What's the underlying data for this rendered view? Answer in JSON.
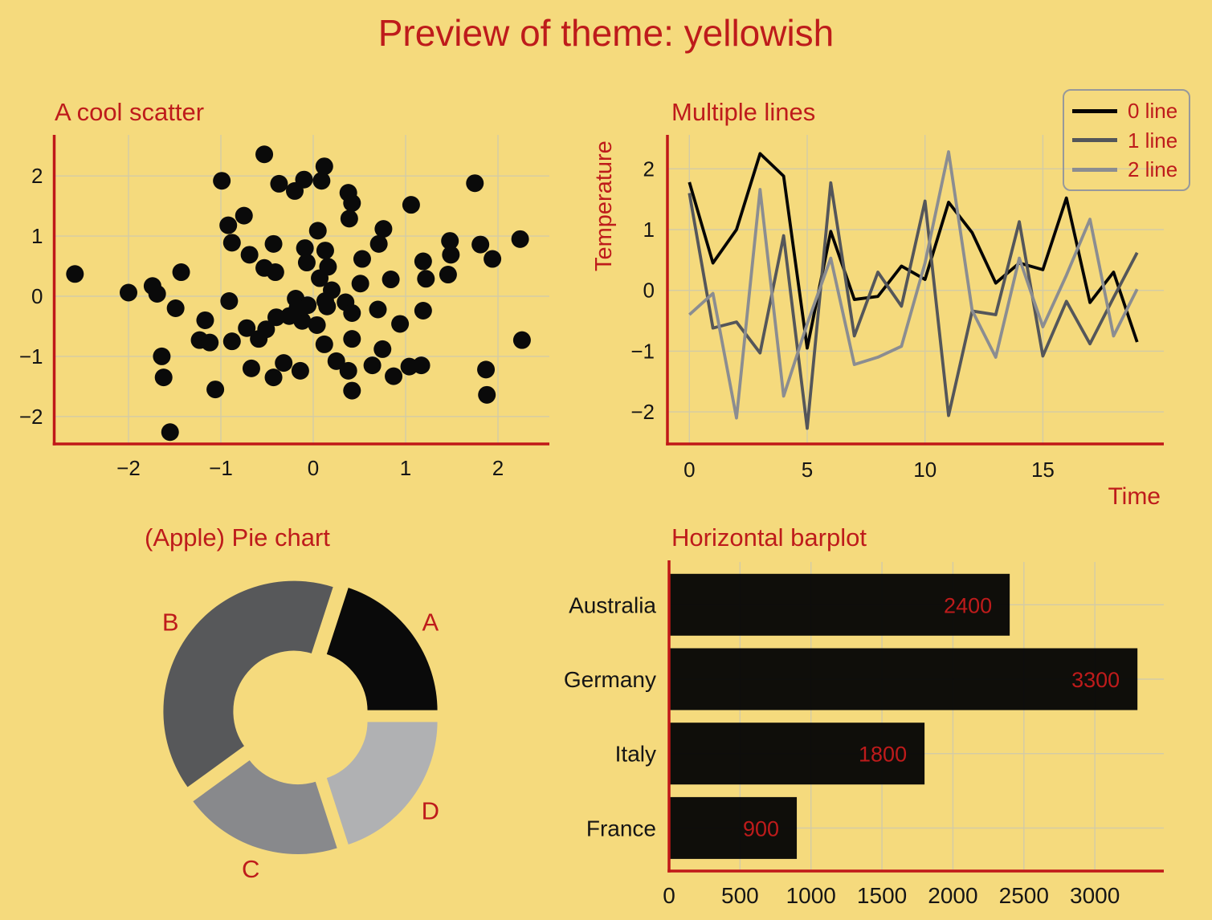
{
  "figure": {
    "title": "Preview of theme: yellowish"
  },
  "colors": {
    "background": "#F5DA7D",
    "accent_red": "#BE1B1B",
    "spine_red": "#C01818",
    "grid": "#D3CBA6",
    "tick_label": "#151515",
    "legend_border": "#97999B"
  },
  "chart_data": [
    {
      "id": "scatter",
      "type": "scatter",
      "title": "A cool scatter",
      "marker_color": "#0A0A0A",
      "marker_radius": 11,
      "xlim": [
        -2.8,
        2.55
      ],
      "ylim": [
        -2.45,
        2.69
      ],
      "x_ticks": {
        "values": [
          -2,
          -1,
          0,
          1,
          2
        ],
        "labels": [
          "−2",
          "−1",
          "0",
          "1",
          "2"
        ]
      },
      "y_ticks": {
        "values": [
          -2,
          -1,
          0,
          1,
          2
        ],
        "labels": [
          "−2",
          "−1",
          "0",
          "1",
          "2"
        ]
      },
      "points": [
        [
          -0.53,
          2.36
        ],
        [
          0.12,
          2.16
        ],
        [
          -0.1,
          1.94
        ],
        [
          0.09,
          1.92
        ],
        [
          -0.99,
          1.92
        ],
        [
          -0.37,
          1.87
        ],
        [
          1.75,
          1.88
        ],
        [
          -0.2,
          1.75
        ],
        [
          0.38,
          1.72
        ],
        [
          0.42,
          1.55
        ],
        [
          1.06,
          1.52
        ],
        [
          -0.75,
          1.34
        ],
        [
          0.39,
          1.29
        ],
        [
          -0.92,
          1.18
        ],
        [
          0.76,
          1.12
        ],
        [
          0.05,
          1.09
        ],
        [
          -0.88,
          0.89
        ],
        [
          -0.43,
          0.87
        ],
        [
          0.71,
          0.87
        ],
        [
          1.48,
          0.92
        ],
        [
          2.24,
          0.95
        ],
        [
          0.53,
          0.62
        ],
        [
          -0.69,
          0.69
        ],
        [
          1.49,
          0.69
        ],
        [
          1.19,
          0.58
        ],
        [
          1.81,
          0.86
        ],
        [
          1.94,
          0.62
        ],
        [
          -0.07,
          0.56
        ],
        [
          -0.53,
          0.47
        ],
        [
          -2.58,
          0.37
        ],
        [
          -1.43,
          0.4
        ],
        [
          -0.41,
          0.4
        ],
        [
          -2.0,
          0.06
        ],
        [
          -1.74,
          0.17
        ],
        [
          -1.69,
          0.04
        ],
        [
          -0.09,
          0.8
        ],
        [
          0.13,
          0.76
        ],
        [
          0.16,
          0.49
        ],
        [
          0.07,
          0.3
        ],
        [
          0.84,
          0.28
        ],
        [
          1.22,
          0.29
        ],
        [
          1.46,
          0.36
        ],
        [
          0.51,
          0.21
        ],
        [
          0.2,
          0.1
        ],
        [
          -0.19,
          -0.04
        ],
        [
          -0.91,
          -0.08
        ],
        [
          0.13,
          -0.08
        ],
        [
          -1.49,
          -0.2
        ],
        [
          -1.17,
          -0.4
        ],
        [
          -0.06,
          -0.15
        ],
        [
          0.15,
          -0.17
        ],
        [
          0.35,
          -0.1
        ],
        [
          0.42,
          -0.28
        ],
        [
          0.7,
          -0.22
        ],
        [
          1.19,
          -0.24
        ],
        [
          -0.4,
          -0.35
        ],
        [
          -0.12,
          -0.41
        ],
        [
          0.04,
          -0.48
        ],
        [
          -0.26,
          -0.33
        ],
        [
          -0.17,
          -0.2
        ],
        [
          -1.23,
          -0.73
        ],
        [
          -1.12,
          -0.77
        ],
        [
          -0.88,
          -0.75
        ],
        [
          -0.72,
          -0.53
        ],
        [
          -0.59,
          -0.71
        ],
        [
          -0.51,
          -0.55
        ],
        [
          0.94,
          -0.46
        ],
        [
          0.12,
          -0.8
        ],
        [
          0.42,
          -0.71
        ],
        [
          0.75,
          -0.88
        ],
        [
          2.26,
          -0.73
        ],
        [
          -1.64,
          -1.0
        ],
        [
          -1.62,
          -1.35
        ],
        [
          -0.67,
          -1.2
        ],
        [
          -0.43,
          -1.35
        ],
        [
          -0.32,
          -1.11
        ],
        [
          -0.14,
          -1.24
        ],
        [
          0.25,
          -1.08
        ],
        [
          0.38,
          -1.24
        ],
        [
          0.64,
          -1.15
        ],
        [
          0.87,
          -1.33
        ],
        [
          1.04,
          -1.17
        ],
        [
          1.17,
          -1.15
        ],
        [
          -1.06,
          -1.55
        ],
        [
          0.42,
          -1.57
        ],
        [
          1.87,
          -1.22
        ],
        [
          1.88,
          -1.64
        ],
        [
          -1.55,
          -2.26
        ]
      ]
    },
    {
      "id": "lines",
      "type": "line",
      "title": "Multiple lines",
      "xlabel": "Time",
      "ylabel": "Temperature",
      "xlim": [
        -1,
        20.1
      ],
      "ylim": [
        -2.53,
        2.53
      ],
      "x_ticks": {
        "values": [
          0,
          5,
          10,
          15
        ],
        "labels": [
          "0",
          "5",
          "10",
          "15"
        ]
      },
      "y_ticks": {
        "values": [
          -2,
          -1,
          0,
          1,
          2
        ],
        "labels": [
          "−2",
          "−1",
          "0",
          "1",
          "2"
        ]
      },
      "x": [
        0,
        1,
        2,
        3,
        4,
        5,
        6,
        7,
        8,
        9,
        10,
        11,
        12,
        13,
        14,
        15,
        16,
        17,
        18,
        19
      ],
      "series": [
        {
          "name": "0 line",
          "color": "#050505",
          "values": [
            1.78,
            0.45,
            1.0,
            2.25,
            1.88,
            -0.95,
            0.97,
            -0.15,
            -0.1,
            0.4,
            0.18,
            1.45,
            0.95,
            0.12,
            0.45,
            0.34,
            1.52,
            -0.2,
            0.3,
            -0.85
          ]
        },
        {
          "name": "1 line",
          "color": "#54565A",
          "values": [
            1.6,
            -0.62,
            -0.52,
            -1.03,
            0.9,
            -2.27,
            1.77,
            -0.75,
            0.3,
            -0.26,
            1.47,
            -2.06,
            -0.34,
            -0.4,
            1.13,
            -1.08,
            -0.18,
            -0.88,
            -0.12,
            0.62
          ]
        },
        {
          "name": "2 line",
          "color": "#8B8D91",
          "values": [
            -0.4,
            -0.05,
            -2.1,
            1.66,
            -1.74,
            -0.55,
            0.53,
            -1.22,
            -1.1,
            -0.92,
            0.45,
            2.28,
            -0.33,
            -1.1,
            0.53,
            -0.6,
            0.25,
            1.17,
            -0.75,
            0.02
          ]
        }
      ]
    },
    {
      "id": "pie",
      "type": "pie",
      "title": "(Apple) Pie chart",
      "donut": true,
      "start_angle": 72,
      "clockwise": true,
      "label_color": "#BE1B1B",
      "slices": [
        {
          "label": "A",
          "percent": 20,
          "color": "#0A0A0A"
        },
        {
          "label": "D",
          "percent": 20,
          "color": "#B0B1B3"
        },
        {
          "label": "C",
          "percent": 20,
          "color": "#88898C"
        },
        {
          "label": "B",
          "percent": 40,
          "color": "#57585A"
        }
      ]
    },
    {
      "id": "bars",
      "type": "bar",
      "orientation": "horizontal",
      "title": "Horizontal barplot",
      "categories": [
        "Australia",
        "Germany",
        "Italy",
        "France"
      ],
      "values": [
        2400,
        3300,
        1800,
        900
      ],
      "bar_color": "#050505",
      "value_label_color": "#BE1B1B",
      "xlim": [
        0,
        3480
      ],
      "x_ticks": {
        "values": [
          0,
          500,
          1000,
          1500,
          2000,
          2500,
          3000
        ],
        "labels": [
          "0",
          "500",
          "1000",
          "1500",
          "2000",
          "2500",
          "3000"
        ]
      }
    }
  ]
}
